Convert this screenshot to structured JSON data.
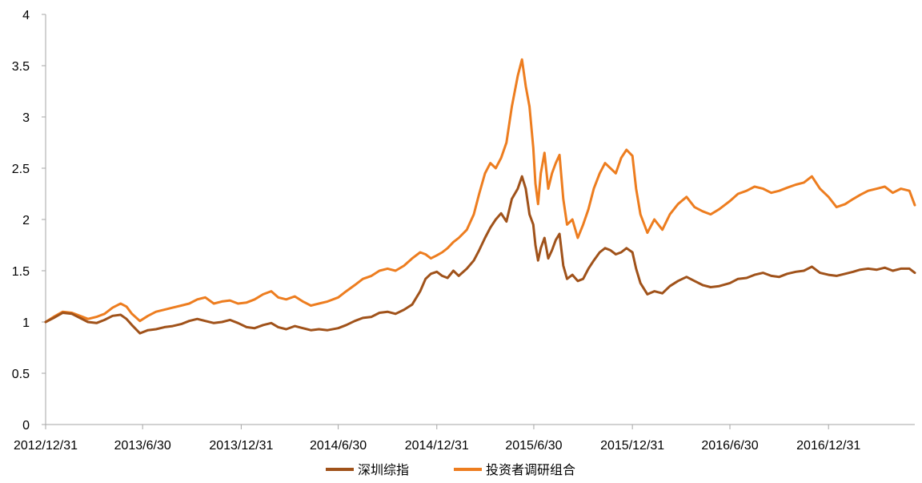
{
  "chart_data": {
    "type": "line",
    "title": "",
    "xlabel": "",
    "ylabel": "",
    "ylim": [
      0,
      4
    ],
    "y_ticks": [
      "0",
      "0.5",
      "1",
      "1.5",
      "2",
      "2.5",
      "3",
      "3.5",
      "4"
    ],
    "x_ticks": [
      "2012/12/31",
      "2013/6/30",
      "2013/12/31",
      "2014/6/30",
      "2014/12/31",
      "2015/6/30",
      "2015/12/31",
      "2016/6/30",
      "2016/12/31"
    ],
    "x_range": [
      "2012/12/31",
      "2017/6/10"
    ],
    "grid": false,
    "legend_position": "bottom-center",
    "series": [
      {
        "name": "深圳综指",
        "color": "#A0521A",
        "points": [
          [
            "2012/12/31",
            1.0
          ],
          [
            "2013/1/15",
            1.04
          ],
          [
            "2013/2/1",
            1.09
          ],
          [
            "2013/2/18",
            1.08
          ],
          [
            "2013/3/5",
            1.04
          ],
          [
            "2013/3/20",
            1.0
          ],
          [
            "2013/4/5",
            0.99
          ],
          [
            "2013/4/20",
            1.02
          ],
          [
            "2013/5/5",
            1.06
          ],
          [
            "2013/5/20",
            1.07
          ],
          [
            "2013/5/31",
            1.03
          ],
          [
            "2013/6/10",
            0.97
          ],
          [
            "2013/6/25",
            0.89
          ],
          [
            "2013/7/10",
            0.92
          ],
          [
            "2013/7/25",
            0.93
          ],
          [
            "2013/8/10",
            0.95
          ],
          [
            "2013/8/25",
            0.96
          ],
          [
            "2013/9/10",
            0.98
          ],
          [
            "2013/9/25",
            1.01
          ],
          [
            "2013/10/10",
            1.03
          ],
          [
            "2013/10/25",
            1.01
          ],
          [
            "2013/11/10",
            0.99
          ],
          [
            "2013/11/25",
            1.0
          ],
          [
            "2013/12/10",
            1.02
          ],
          [
            "2013/12/25",
            0.99
          ],
          [
            "2014/1/10",
            0.95
          ],
          [
            "2014/1/25",
            0.94
          ],
          [
            "2014/2/10",
            0.97
          ],
          [
            "2014/2/25",
            0.99
          ],
          [
            "2014/3/10",
            0.95
          ],
          [
            "2014/3/25",
            0.93
          ],
          [
            "2014/4/10",
            0.96
          ],
          [
            "2014/4/25",
            0.94
          ],
          [
            "2014/5/10",
            0.92
          ],
          [
            "2014/5/25",
            0.93
          ],
          [
            "2014/6/10",
            0.92
          ],
          [
            "2014/6/30",
            0.94
          ],
          [
            "2014/7/15",
            0.97
          ],
          [
            "2014/7/31",
            1.01
          ],
          [
            "2014/8/15",
            1.04
          ],
          [
            "2014/8/31",
            1.05
          ],
          [
            "2014/9/15",
            1.09
          ],
          [
            "2014/9/30",
            1.1
          ],
          [
            "2014/10/15",
            1.08
          ],
          [
            "2014/10/31",
            1.12
          ],
          [
            "2014/11/15",
            1.17
          ],
          [
            "2014/11/30",
            1.3
          ],
          [
            "2014/12/10",
            1.42
          ],
          [
            "2014/12/20",
            1.47
          ],
          [
            "2014/12/31",
            1.49
          ],
          [
            "2015/1/10",
            1.45
          ],
          [
            "2015/1/20",
            1.43
          ],
          [
            "2015/1/31",
            1.5
          ],
          [
            "2015/2/10",
            1.45
          ],
          [
            "2015/2/25",
            1.52
          ],
          [
            "2015/3/10",
            1.6
          ],
          [
            "2015/3/20",
            1.7
          ],
          [
            "2015/3/31",
            1.82
          ],
          [
            "2015/4/10",
            1.92
          ],
          [
            "2015/4/20",
            2.0
          ],
          [
            "2015/4/30",
            2.06
          ],
          [
            "2015/5/10",
            1.98
          ],
          [
            "2015/5/20",
            2.2
          ],
          [
            "2015/5/31",
            2.3
          ],
          [
            "2015/6/8",
            2.42
          ],
          [
            "2015/6/15",
            2.3
          ],
          [
            "2015/6/22",
            2.05
          ],
          [
            "2015/6/29",
            1.95
          ],
          [
            "2015/7/3",
            1.75
          ],
          [
            "2015/7/8",
            1.6
          ],
          [
            "2015/7/13",
            1.72
          ],
          [
            "2015/7/20",
            1.82
          ],
          [
            "2015/7/27",
            1.62
          ],
          [
            "2015/8/3",
            1.7
          ],
          [
            "2015/8/10",
            1.8
          ],
          [
            "2015/8/17",
            1.86
          ],
          [
            "2015/8/24",
            1.55
          ],
          [
            "2015/8/31",
            1.42
          ],
          [
            "2015/9/10",
            1.46
          ],
          [
            "2015/9/20",
            1.4
          ],
          [
            "2015/9/30",
            1.42
          ],
          [
            "2015/10/10",
            1.52
          ],
          [
            "2015/10/20",
            1.6
          ],
          [
            "2015/10/31",
            1.68
          ],
          [
            "2015/11/10",
            1.72
          ],
          [
            "2015/11/20",
            1.7
          ],
          [
            "2015/11/30",
            1.66
          ],
          [
            "2015/12/10",
            1.68
          ],
          [
            "2015/12/20",
            1.72
          ],
          [
            "2015/12/31",
            1.68
          ],
          [
            "2016/1/7",
            1.52
          ],
          [
            "2016/1/15",
            1.38
          ],
          [
            "2016/1/28",
            1.27
          ],
          [
            "2016/2/10",
            1.3
          ],
          [
            "2016/2/25",
            1.28
          ],
          [
            "2016/3/10",
            1.35
          ],
          [
            "2016/3/25",
            1.4
          ],
          [
            "2016/4/10",
            1.44
          ],
          [
            "2016/4/25",
            1.4
          ],
          [
            "2016/5/10",
            1.36
          ],
          [
            "2016/5/25",
            1.34
          ],
          [
            "2016/6/10",
            1.35
          ],
          [
            "2016/6/30",
            1.38
          ],
          [
            "2016/7/15",
            1.42
          ],
          [
            "2016/7/31",
            1.43
          ],
          [
            "2016/8/15",
            1.46
          ],
          [
            "2016/8/31",
            1.48
          ],
          [
            "2016/9/15",
            1.45
          ],
          [
            "2016/9/30",
            1.44
          ],
          [
            "2016/10/15",
            1.47
          ],
          [
            "2016/10/31",
            1.49
          ],
          [
            "2016/11/15",
            1.5
          ],
          [
            "2016/11/30",
            1.54
          ],
          [
            "2016/12/15",
            1.48
          ],
          [
            "2016/12/31",
            1.46
          ],
          [
            "2017/1/15",
            1.45
          ],
          [
            "2017/1/31",
            1.47
          ],
          [
            "2017/2/15",
            1.49
          ],
          [
            "2017/2/28",
            1.51
          ],
          [
            "2017/3/15",
            1.52
          ],
          [
            "2017/3/31",
            1.51
          ],
          [
            "2017/4/15",
            1.53
          ],
          [
            "2017/4/30",
            1.5
          ],
          [
            "2017/5/15",
            1.52
          ],
          [
            "2017/5/31",
            1.52
          ],
          [
            "2017/6/10",
            1.48
          ]
        ]
      },
      {
        "name": "投资者调研组合",
        "color": "#ED7D1F",
        "points": [
          [
            "2012/12/31",
            1.0
          ],
          [
            "2013/1/15",
            1.05
          ],
          [
            "2013/2/1",
            1.1
          ],
          [
            "2013/2/18",
            1.09
          ],
          [
            "2013/3/5",
            1.06
          ],
          [
            "2013/3/20",
            1.03
          ],
          [
            "2013/4/5",
            1.05
          ],
          [
            "2013/4/20",
            1.08
          ],
          [
            "2013/5/5",
            1.14
          ],
          [
            "2013/5/20",
            1.18
          ],
          [
            "2013/5/31",
            1.15
          ],
          [
            "2013/6/10",
            1.08
          ],
          [
            "2013/6/25",
            1.01
          ],
          [
            "2013/7/10",
            1.06
          ],
          [
            "2013/7/25",
            1.1
          ],
          [
            "2013/8/10",
            1.12
          ],
          [
            "2013/8/25",
            1.14
          ],
          [
            "2013/9/10",
            1.16
          ],
          [
            "2013/9/25",
            1.18
          ],
          [
            "2013/10/10",
            1.22
          ],
          [
            "2013/10/25",
            1.24
          ],
          [
            "2013/11/10",
            1.18
          ],
          [
            "2013/11/25",
            1.2
          ],
          [
            "2013/12/10",
            1.21
          ],
          [
            "2013/12/25",
            1.18
          ],
          [
            "2014/1/10",
            1.19
          ],
          [
            "2014/1/25",
            1.22
          ],
          [
            "2014/2/10",
            1.27
          ],
          [
            "2014/2/25",
            1.3
          ],
          [
            "2014/3/10",
            1.24
          ],
          [
            "2014/3/25",
            1.22
          ],
          [
            "2014/4/10",
            1.25
          ],
          [
            "2014/4/25",
            1.2
          ],
          [
            "2014/5/10",
            1.16
          ],
          [
            "2014/5/25",
            1.18
          ],
          [
            "2014/6/10",
            1.2
          ],
          [
            "2014/6/30",
            1.24
          ],
          [
            "2014/7/15",
            1.3
          ],
          [
            "2014/7/31",
            1.36
          ],
          [
            "2014/8/15",
            1.42
          ],
          [
            "2014/8/31",
            1.45
          ],
          [
            "2014/9/15",
            1.5
          ],
          [
            "2014/9/30",
            1.52
          ],
          [
            "2014/10/15",
            1.5
          ],
          [
            "2014/10/31",
            1.55
          ],
          [
            "2014/11/15",
            1.62
          ],
          [
            "2014/11/30",
            1.68
          ],
          [
            "2014/12/10",
            1.66
          ],
          [
            "2014/12/20",
            1.62
          ],
          [
            "2014/12/31",
            1.65
          ],
          [
            "2015/1/10",
            1.68
          ],
          [
            "2015/1/20",
            1.72
          ],
          [
            "2015/1/31",
            1.78
          ],
          [
            "2015/2/10",
            1.82
          ],
          [
            "2015/2/25",
            1.9
          ],
          [
            "2015/3/10",
            2.05
          ],
          [
            "2015/3/20",
            2.25
          ],
          [
            "2015/3/31",
            2.45
          ],
          [
            "2015/4/10",
            2.55
          ],
          [
            "2015/4/20",
            2.5
          ],
          [
            "2015/4/30",
            2.6
          ],
          [
            "2015/5/10",
            2.75
          ],
          [
            "2015/5/20",
            3.1
          ],
          [
            "2015/5/31",
            3.4
          ],
          [
            "2015/6/8",
            3.56
          ],
          [
            "2015/6/15",
            3.3
          ],
          [
            "2015/6/22",
            3.1
          ],
          [
            "2015/6/29",
            2.7
          ],
          [
            "2015/7/3",
            2.35
          ],
          [
            "2015/7/8",
            2.15
          ],
          [
            "2015/7/13",
            2.45
          ],
          [
            "2015/7/20",
            2.65
          ],
          [
            "2015/7/27",
            2.3
          ],
          [
            "2015/8/3",
            2.45
          ],
          [
            "2015/8/10",
            2.55
          ],
          [
            "2015/8/17",
            2.63
          ],
          [
            "2015/8/24",
            2.2
          ],
          [
            "2015/8/31",
            1.95
          ],
          [
            "2015/9/10",
            2.0
          ],
          [
            "2015/9/20",
            1.82
          ],
          [
            "2015/9/30",
            1.95
          ],
          [
            "2015/10/10",
            2.1
          ],
          [
            "2015/10/20",
            2.3
          ],
          [
            "2015/10/31",
            2.45
          ],
          [
            "2015/11/10",
            2.55
          ],
          [
            "2015/11/20",
            2.5
          ],
          [
            "2015/11/30",
            2.45
          ],
          [
            "2015/12/10",
            2.6
          ],
          [
            "2015/12/20",
            2.68
          ],
          [
            "2015/12/31",
            2.62
          ],
          [
            "2016/1/7",
            2.3
          ],
          [
            "2016/1/15",
            2.05
          ],
          [
            "2016/1/28",
            1.87
          ],
          [
            "2016/2/10",
            2.0
          ],
          [
            "2016/2/25",
            1.9
          ],
          [
            "2016/3/10",
            2.05
          ],
          [
            "2016/3/25",
            2.15
          ],
          [
            "2016/4/10",
            2.22
          ],
          [
            "2016/4/25",
            2.12
          ],
          [
            "2016/5/10",
            2.08
          ],
          [
            "2016/5/25",
            2.05
          ],
          [
            "2016/6/10",
            2.1
          ],
          [
            "2016/6/30",
            2.18
          ],
          [
            "2016/7/15",
            2.25
          ],
          [
            "2016/7/31",
            2.28
          ],
          [
            "2016/8/15",
            2.32
          ],
          [
            "2016/8/31",
            2.3
          ],
          [
            "2016/9/15",
            2.26
          ],
          [
            "2016/9/30",
            2.28
          ],
          [
            "2016/10/15",
            2.31
          ],
          [
            "2016/10/31",
            2.34
          ],
          [
            "2016/11/15",
            2.36
          ],
          [
            "2016/11/30",
            2.42
          ],
          [
            "2016/12/15",
            2.3
          ],
          [
            "2016/12/31",
            2.22
          ],
          [
            "2017/1/15",
            2.12
          ],
          [
            "2017/1/31",
            2.15
          ],
          [
            "2017/2/15",
            2.2
          ],
          [
            "2017/2/28",
            2.24
          ],
          [
            "2017/3/15",
            2.28
          ],
          [
            "2017/3/31",
            2.3
          ],
          [
            "2017/4/15",
            2.32
          ],
          [
            "2017/4/30",
            2.26
          ],
          [
            "2017/5/15",
            2.3
          ],
          [
            "2017/5/31",
            2.28
          ],
          [
            "2017/6/10",
            2.14
          ]
        ]
      }
    ]
  }
}
